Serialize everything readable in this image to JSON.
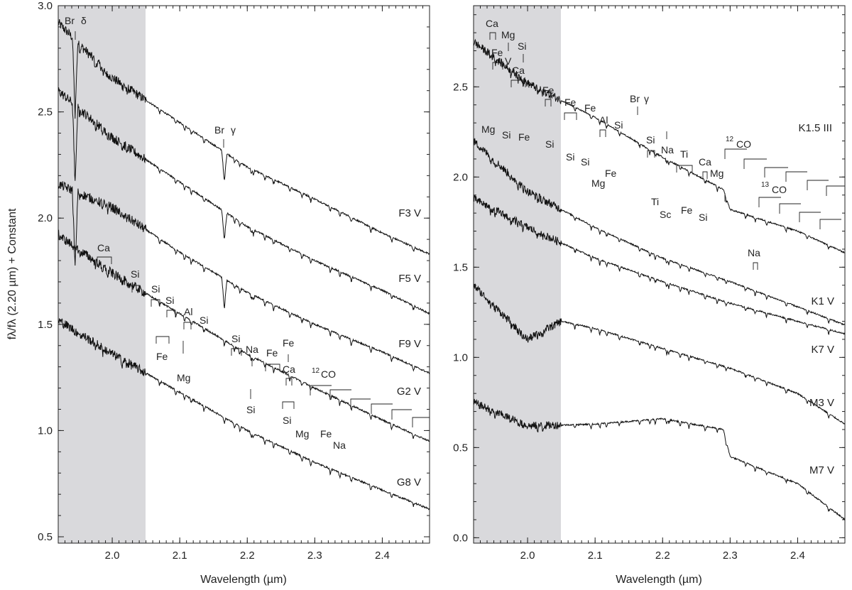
{
  "chart_data": [
    {
      "type": "line",
      "panel": "left",
      "ylabel": "fλ/fλ (2.20 µm) + Constant",
      "xlabel": "Wavelength (µm)",
      "xlim": [
        1.92,
        2.47
      ],
      "ylim": [
        0.47,
        3.0
      ],
      "xticks": [
        "2.0",
        "2.1",
        "2.2",
        "2.3",
        "2.4"
      ],
      "yticks": [
        "0.5",
        "1.0",
        "1.5",
        "2.0",
        "2.5",
        "3.0"
      ],
      "shaded_region": [
        1.92,
        2.05
      ],
      "series": [
        {
          "name": "F3 V",
          "x": [
            1.92,
            2.0,
            2.1,
            2.2,
            2.3,
            2.4,
            2.47
          ],
          "y": [
            2.92,
            2.66,
            2.45,
            2.24,
            2.09,
            1.93,
            1.83
          ]
        },
        {
          "name": "F5 V",
          "x": [
            1.92,
            2.0,
            2.1,
            2.2,
            2.3,
            2.4,
            2.47
          ],
          "y": [
            2.6,
            2.38,
            2.17,
            1.96,
            1.8,
            1.66,
            1.55
          ]
        },
        {
          "name": "F9 V",
          "x": [
            1.92,
            2.0,
            2.1,
            2.2,
            2.3,
            2.4,
            2.47
          ],
          "y": [
            2.16,
            2.05,
            1.84,
            1.65,
            1.5,
            1.37,
            1.27
          ]
        },
        {
          "name": "G2 V",
          "x": [
            1.92,
            2.0,
            2.1,
            2.2,
            2.3,
            2.4,
            2.47
          ],
          "y": [
            1.92,
            1.74,
            1.55,
            1.36,
            1.2,
            1.05,
            0.95
          ]
        },
        {
          "name": "G8 V",
          "x": [
            1.92,
            2.0,
            2.1,
            2.2,
            2.3,
            2.4,
            2.47
          ],
          "y": [
            1.52,
            1.36,
            1.18,
            1.0,
            0.85,
            0.72,
            0.63
          ]
        }
      ],
      "series_labels": [
        "F3 V",
        "F5 V",
        "F9 V",
        "G2 V",
        "G8 V"
      ],
      "annotations": [
        "Br",
        "δ",
        "Br",
        "γ",
        "Ca",
        "Si",
        "Si",
        "Si",
        "Al",
        "Si",
        "Fe",
        "Mg",
        "Si",
        "Na",
        "Fe",
        "Fe",
        "Ca",
        "Si",
        "Si",
        "Mg",
        "Fe",
        "Na",
        "12",
        "CO"
      ]
    },
    {
      "type": "line",
      "panel": "right",
      "xlabel": "Wavelength (µm)",
      "xlim": [
        1.92,
        2.47
      ],
      "ylim": [
        -0.03,
        2.95
      ],
      "xticks": [
        "2.0",
        "2.1",
        "2.2",
        "2.3",
        "2.4"
      ],
      "yticks": [
        "0.0",
        "0.5",
        "1.0",
        "1.5",
        "2.0",
        "2.5"
      ],
      "shaded_region": [
        1.92,
        2.05
      ],
      "series": [
        {
          "name": "K1.5 III",
          "x": [
            1.92,
            2.0,
            2.1,
            2.2,
            2.29,
            2.3,
            2.4,
            2.47
          ],
          "y": [
            2.75,
            2.52,
            2.33,
            2.11,
            1.93,
            1.82,
            1.7,
            1.58
          ]
        },
        {
          "name": "K1 V",
          "x": [
            1.92,
            2.0,
            2.1,
            2.2,
            2.3,
            2.4,
            2.47
          ],
          "y": [
            2.2,
            1.92,
            1.72,
            1.55,
            1.42,
            1.28,
            1.18
          ]
        },
        {
          "name": "K7 V",
          "x": [
            1.92,
            2.0,
            2.1,
            2.2,
            2.3,
            2.4,
            2.47
          ],
          "y": [
            1.88,
            1.72,
            1.55,
            1.42,
            1.3,
            1.2,
            1.13
          ]
        },
        {
          "name": "M3 V",
          "x": [
            1.92,
            2.0,
            2.05,
            2.1,
            2.2,
            2.3,
            2.4,
            2.47
          ],
          "y": [
            1.4,
            1.1,
            1.2,
            1.16,
            1.05,
            0.94,
            0.8,
            0.63
          ]
        },
        {
          "name": "M7 V",
          "x": [
            1.92,
            2.0,
            2.1,
            2.2,
            2.29,
            2.3,
            2.4,
            2.47
          ],
          "y": [
            0.75,
            0.62,
            0.63,
            0.66,
            0.6,
            0.45,
            0.3,
            0.1
          ]
        }
      ],
      "series_labels": [
        "K1.5 III",
        "K1 V",
        "K7 V",
        "M3 V",
        "M7 V"
      ],
      "annotations": [
        "Ca",
        "Mg",
        "Fe",
        "V",
        "Si",
        "Ca",
        "Mg",
        "Si",
        "Fe",
        "Fe",
        "Si",
        "Fe",
        "Fe",
        "Al",
        "Si",
        "Br",
        "γ",
        "Si",
        "Si",
        "Mg",
        "Fe",
        "Si",
        "Na",
        "Ti",
        "Ti",
        "Sc",
        "Fe",
        "Ca",
        "Mg",
        "Si",
        "12",
        "CO",
        "13",
        "CO",
        "Na"
      ]
    }
  ]
}
